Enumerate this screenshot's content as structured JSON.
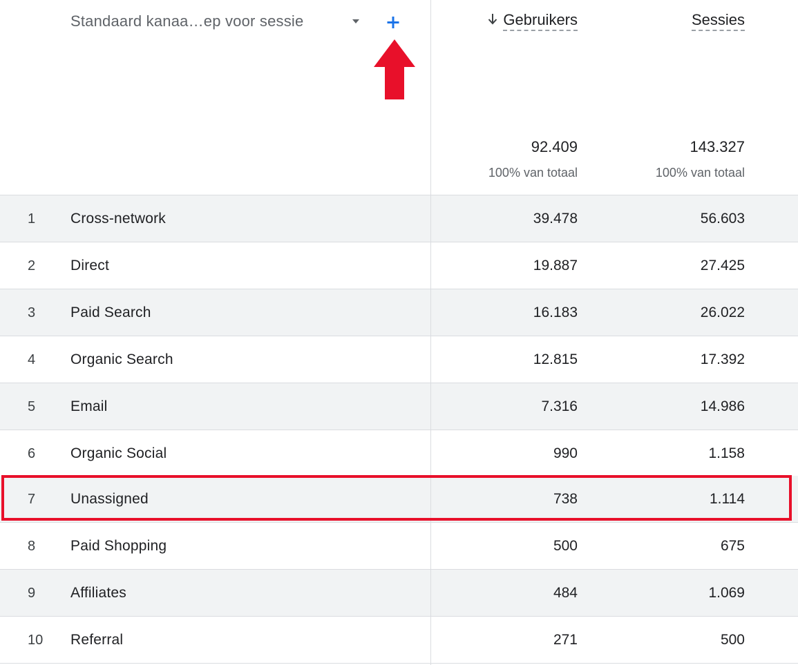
{
  "header": {
    "dimension_label": "Standaard kanaa…ep voor sessie",
    "columns": [
      {
        "label": "Gebruikers",
        "sorted": "descending"
      },
      {
        "label": "Sessies"
      }
    ]
  },
  "totals": {
    "users": "92.409",
    "users_sub": "100% van totaal",
    "sessions": "143.327",
    "sessions_sub": "100% van totaal"
  },
  "rows": [
    {
      "index": "1",
      "name": "Cross-network",
      "users": "39.478",
      "sessions": "56.603"
    },
    {
      "index": "2",
      "name": "Direct",
      "users": "19.887",
      "sessions": "27.425"
    },
    {
      "index": "3",
      "name": "Paid Search",
      "users": "16.183",
      "sessions": "26.022"
    },
    {
      "index": "4",
      "name": "Organic Search",
      "users": "12.815",
      "sessions": "17.392"
    },
    {
      "index": "5",
      "name": "Email",
      "users": "7.316",
      "sessions": "14.986"
    },
    {
      "index": "6",
      "name": "Organic Social",
      "users": "990",
      "sessions": "1.158"
    },
    {
      "index": "7",
      "name": "Unassigned",
      "users": "738",
      "sessions": "1.114",
      "highlighted": true
    },
    {
      "index": "8",
      "name": "Paid Shopping",
      "users": "500",
      "sessions": "675"
    },
    {
      "index": "9",
      "name": "Affiliates",
      "users": "484",
      "sessions": "1.069"
    },
    {
      "index": "10",
      "name": "Referral",
      "users": "271",
      "sessions": "500"
    }
  ],
  "colors": {
    "accent": "#1a73e8",
    "annotation": "#e8102a",
    "row_alt": "#f1f3f4",
    "divider": "#dadce0"
  },
  "icons": {
    "dropdown": "chevron-down-icon",
    "add": "plus-icon",
    "sort": "arrow-down-icon"
  }
}
